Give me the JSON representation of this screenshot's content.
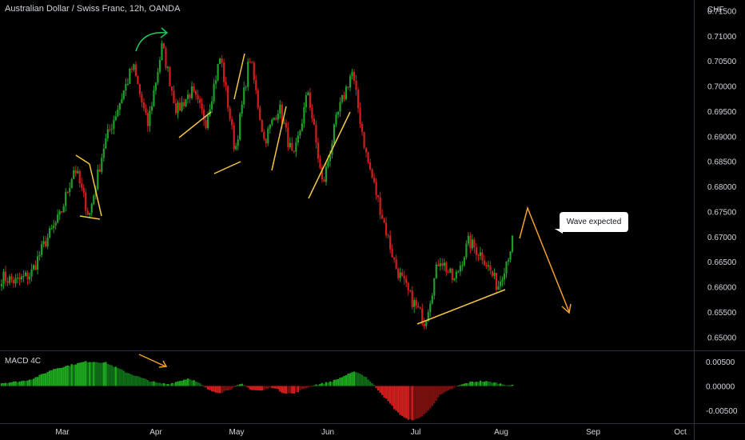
{
  "header": {
    "title": "Australian Dollar / Swiss Franc, 12h, OANDA"
  },
  "indicator": {
    "title": "MACD 4C"
  },
  "price_axis": {
    "currency": "CHF",
    "ticks": [
      "0.71500",
      "0.71000",
      "0.70500",
      "0.70000",
      "0.69500",
      "0.69000",
      "0.68500",
      "0.68000",
      "0.67500",
      "0.67000",
      "0.66500",
      "0.66000",
      "0.65500",
      "0.65000"
    ]
  },
  "macd_axis": {
    "ticks": [
      "0.00500",
      "0.00000",
      "-0.00500"
    ]
  },
  "time_axis": {
    "labels": [
      "Mar",
      "Apr",
      "May",
      "Jun",
      "Jul",
      "Aug",
      "Sep",
      "Oct"
    ]
  },
  "annotation": {
    "text": "Wave expected"
  },
  "colors": {
    "background": "#000000",
    "up": "#1e9e2a",
    "down": "#d01e1e",
    "annotation_line": "#f0a030",
    "wave_line": "#f5c842",
    "arrow_green": "#22c55e",
    "macd_pos_strong": "#1ea51e",
    "macd_pos_weak": "#0f6b17",
    "macd_neg_strong": "#d01e1e",
    "macd_neg_weak": "#7a0f0f"
  },
  "chart_data": {
    "type": "candlestick",
    "symbol": "AUDCHF",
    "timeframe": "12h",
    "y_range": [
      0.6475,
      0.7165
    ],
    "x_labels": [
      "Mar",
      "Apr",
      "May",
      "Jun",
      "Jul",
      "Aug",
      "Sep",
      "Oct"
    ],
    "close_path": [
      [
        "Feb",
        0.662
      ],
      [
        "Feb",
        0.661
      ],
      [
        "Feb",
        0.6625
      ],
      [
        "Mar",
        0.669
      ],
      [
        "Mar",
        0.674
      ],
      [
        "Mar",
        0.684
      ],
      [
        "Mar",
        0.674
      ],
      [
        "Mar",
        0.688
      ],
      [
        "Mar",
        0.696
      ],
      [
        "Apr",
        0.704
      ],
      [
        "Apr",
        0.692
      ],
      [
        "Apr",
        0.708
      ],
      [
        "Apr",
        0.695
      ],
      [
        "Apr",
        0.699
      ],
      [
        "Apr",
        0.693
      ],
      [
        "Apr",
        0.706
      ],
      [
        "May",
        0.687
      ],
      [
        "May",
        0.706
      ],
      [
        "May",
        0.689
      ],
      [
        "May",
        0.696
      ],
      [
        "May",
        0.685
      ],
      [
        "May",
        0.699
      ],
      [
        "May",
        0.68
      ],
      [
        "Jun",
        0.694
      ],
      [
        "Jun",
        0.703
      ],
      [
        "Jun",
        0.686
      ],
      [
        "Jun",
        0.675
      ],
      [
        "Jun",
        0.664
      ],
      [
        "Jul",
        0.658
      ],
      [
        "Jul",
        0.653
      ],
      [
        "Jul",
        0.666
      ],
      [
        "Jul",
        0.661
      ],
      [
        "Jul",
        0.669
      ],
      [
        "Aug",
        0.666
      ],
      [
        "Aug",
        0.66
      ],
      [
        "Aug",
        0.669
      ]
    ],
    "macd_histogram": {
      "range": [
        -0.0075,
        0.007
      ],
      "profile": [
        0.0006,
        0.0008,
        0.001,
        0.0015,
        0.0025,
        0.0035,
        0.004,
        0.0045,
        0.005,
        0.005,
        0.0048,
        0.0038,
        0.0028,
        0.002,
        0.0012,
        0.0006,
        0.0004,
        0.001,
        0.0016,
        0.0005,
        -0.001,
        -0.0014,
        -0.0006,
        0.0004,
        -0.0008,
        -0.001,
        -0.0002,
        -0.0014,
        -0.0016,
        -0.0006,
        0.0002,
        0.0006,
        0.0012,
        0.0022,
        0.003,
        0.0018,
        -0.0005,
        -0.003,
        -0.0055,
        -0.007,
        -0.0068,
        -0.005,
        -0.002,
        -0.0008,
        0.0002,
        0.0008,
        0.001,
        0.0008,
        0.0004,
        0.0001
      ]
    },
    "drawings": {
      "callout": "Wave expected",
      "projection": [
        [
          0.669,
          "up"
        ],
        [
          0.6755,
          "peak"
        ],
        [
          0.6535,
          "target"
        ]
      ]
    }
  }
}
